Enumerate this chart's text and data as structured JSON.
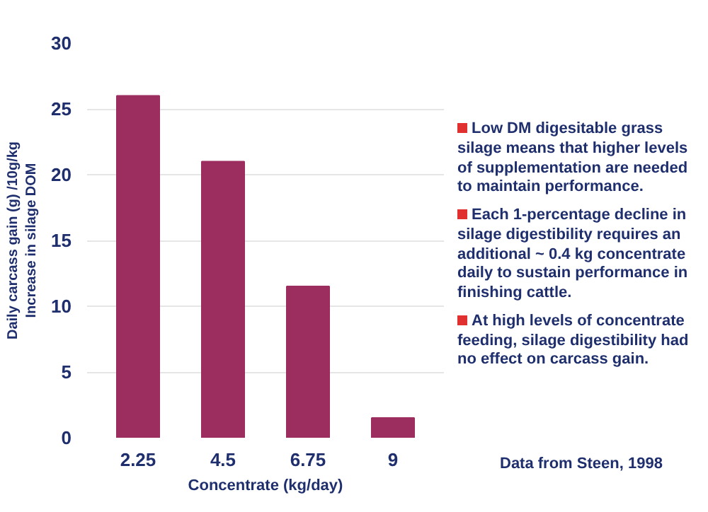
{
  "chart_data": {
    "type": "bar",
    "categories": [
      "2.25",
      "4.5",
      "6.75",
      "9"
    ],
    "values": [
      26,
      21,
      11.5,
      1.5
    ],
    "color": "#9b2d5f",
    "ylim": [
      0,
      30
    ],
    "yticks": [
      0,
      5,
      10,
      15,
      20,
      25,
      30
    ],
    "grid": "y",
    "xlabel": "Concentrate (kg/day)",
    "ylabel": "Daily carcass gain (g) /10g/kg\nIncrease in silage DOM",
    "annotations": [
      "Low DM digesitable grass silage means that higher levels of supplementation are needed to maintain performance.",
      "Each 1-percentage decline in silage digestibility requires an additional ~ 0.4 kg concentrate daily to sustain performance in finishing cattle.",
      "At high levels of concentrate feeding, silage digestibility had no effect on carcass gain.",
      "Data from Steen, 1998"
    ]
  }
}
